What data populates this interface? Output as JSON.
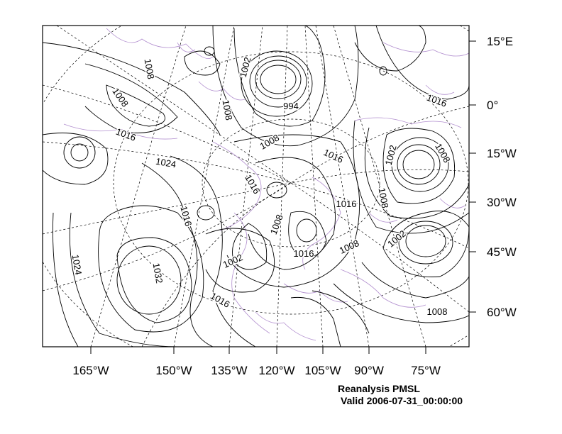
{
  "plot": {
    "title": "Reanalysis PMSL",
    "valid_time": "Valid 2006-07-31_00:00:00"
  },
  "axes": {
    "bottom_labels": [
      "165°W",
      "150°W",
      "135°W",
      "120°W",
      "105°W",
      "90°W",
      "75°W"
    ],
    "right_labels": [
      "15°E",
      "0°",
      "15°W",
      "30°W",
      "45°W",
      "60°W"
    ]
  },
  "contour_labels": [
    "1008",
    "1008",
    "1002",
    "1008",
    "994",
    "1016",
    "1016",
    "1008",
    "1016",
    "1024",
    "1016",
    "1016",
    "1002",
    "1008",
    "1016",
    "1008",
    "1008",
    "1016",
    "1008",
    "1002",
    "1002",
    "1024",
    "1032",
    "1016",
    "1008"
  ],
  "colors": {
    "contour": "#000000",
    "coastline": "#b28fcf",
    "grid": "#000000",
    "background": "#ffffff"
  }
}
